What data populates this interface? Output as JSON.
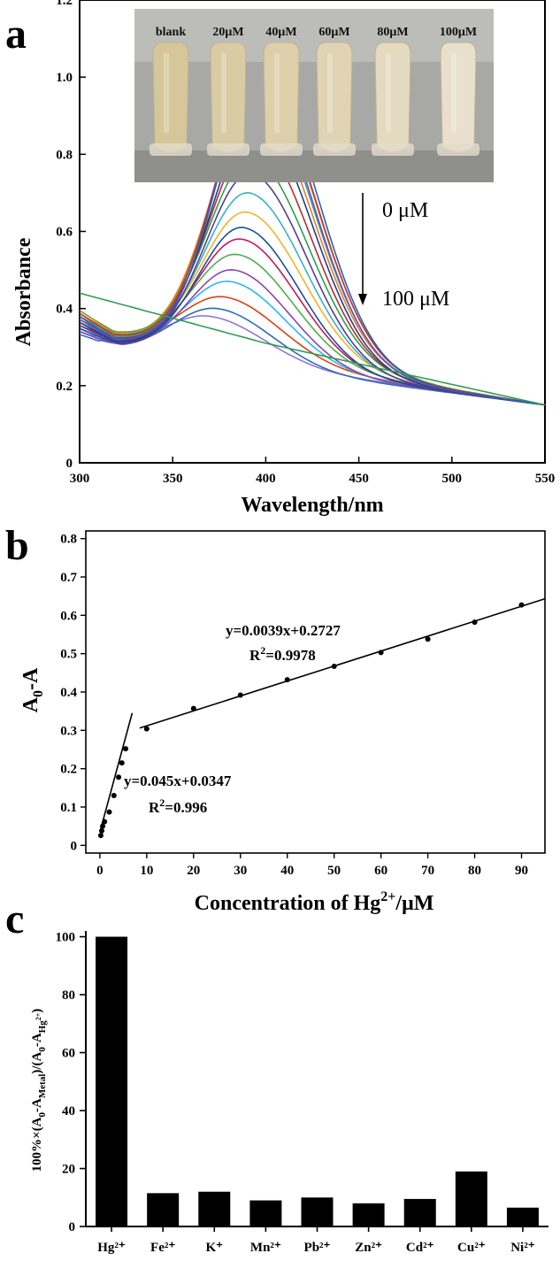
{
  "panels": {
    "a": {
      "letter": "a"
    },
    "b": {
      "letter": "b"
    },
    "c": {
      "letter": "c"
    }
  },
  "photo_inset": {
    "labels": [
      "blank",
      "20μM",
      "40μM",
      "60μM",
      "80μM",
      "100μM"
    ]
  },
  "chart_data": [
    {
      "type": "line",
      "panel": "a",
      "xlabel": "Wavelength/nm",
      "ylabel": "Absorbance",
      "xlim": [
        300,
        550
      ],
      "ylim": [
        0,
        1.2
      ],
      "xticks": [
        "300",
        "350",
        "400",
        "450",
        "500",
        "550"
      ],
      "yticks": [
        "0",
        "0.2",
        "0.4",
        "0.6",
        "0.8",
        "1.0",
        "1.2"
      ],
      "annotations": {
        "top": "0 μM",
        "bottom": "100 μM"
      },
      "peak_wavelengths": [
        398,
        397,
        397,
        396,
        396,
        395,
        395,
        394,
        393,
        392,
        391,
        390,
        388,
        387,
        385,
        383,
        381,
        378,
        374,
        370
      ],
      "peak_values": [
        1.01,
        0.99,
        0.98,
        0.97,
        0.95,
        0.93,
        0.89,
        0.84,
        0.79,
        0.75,
        0.7,
        0.65,
        0.61,
        0.58,
        0.54,
        0.5,
        0.47,
        0.43,
        0.4,
        0.38
      ],
      "series_colors": [
        "#2b5fb5",
        "#c0392b",
        "#7a9a2c",
        "#7b4fa3",
        "#2aa4b8",
        "#e67e22",
        "#1f3e8a",
        "#b03030",
        "#2e9e52",
        "#5a3c8f",
        "#3ab0c8",
        "#f0b429",
        "#1a4f9c",
        "#c2185b",
        "#4caf50",
        "#8e44ad",
        "#29b6f6",
        "#d84315",
        "#2c6fbb",
        "#9575cd"
      ],
      "baseline_series": {
        "color": "#2e9e52",
        "points": [
          [
            300,
            0.44
          ],
          [
            400,
            0.31
          ],
          [
            550,
            0.15
          ]
        ]
      }
    },
    {
      "type": "scatter",
      "panel": "b",
      "xlabel": "Concentration of Hg²⁺/μM",
      "ylabel": "A₀-A",
      "xlim": [
        -3,
        95
      ],
      "ylim": [
        -0.02,
        0.82
      ],
      "xticks": [
        "0",
        "10",
        "20",
        "30",
        "40",
        "50",
        "60",
        "70",
        "80",
        "90"
      ],
      "yticks": [
        "0",
        "0.1",
        "0.2",
        "0.3",
        "0.4",
        "0.5",
        "0.6",
        "0.7",
        "0.8"
      ],
      "points": [
        [
          0.2,
          0.026
        ],
        [
          0.4,
          0.038
        ],
        [
          0.6,
          0.05
        ],
        [
          1,
          0.062
        ],
        [
          2,
          0.087
        ],
        [
          3,
          0.13
        ],
        [
          4,
          0.178
        ],
        [
          4.7,
          0.215
        ],
        [
          5.5,
          0.252
        ],
        [
          10,
          0.304
        ],
        [
          20,
          0.357
        ],
        [
          30,
          0.392
        ],
        [
          40,
          0.432
        ],
        [
          50,
          0.467
        ],
        [
          60,
          0.503
        ],
        [
          70,
          0.538
        ],
        [
          80,
          0.582
        ],
        [
          90,
          0.627
        ]
      ],
      "fit_lines": [
        {
          "slope": 0.045,
          "intercept": 0.0347,
          "xrange": [
            0,
            6.9
          ]
        },
        {
          "slope": 0.0039,
          "intercept": 0.2727,
          "xrange": [
            8.5,
            95
          ]
        }
      ],
      "equations": {
        "high": {
          "eq": "y=0.0039x+0.2727",
          "r2": "=0.9978"
        },
        "low": {
          "eq": "y=0.045x+0.0347",
          "r2": "=0.996"
        }
      }
    },
    {
      "type": "bar",
      "panel": "c",
      "categories": [
        "Hg²⁺",
        "Fe²⁺",
        "K⁺",
        "Mn²⁺",
        "Pb²⁺",
        "Zn²⁺",
        "Cd²⁺",
        "Cu²⁺",
        "Ni²⁺"
      ],
      "values": [
        100,
        11.5,
        12,
        9,
        10,
        8,
        9.5,
        19,
        6.5
      ],
      "ylabel": "100%×(A₀-A_Metal)/(A₀-A_Hg²⁺)",
      "ylim": [
        0,
        102
      ],
      "yticks": [
        "0",
        "20",
        "40",
        "60",
        "80",
        "100"
      ],
      "bar_color": "#000000"
    }
  ]
}
